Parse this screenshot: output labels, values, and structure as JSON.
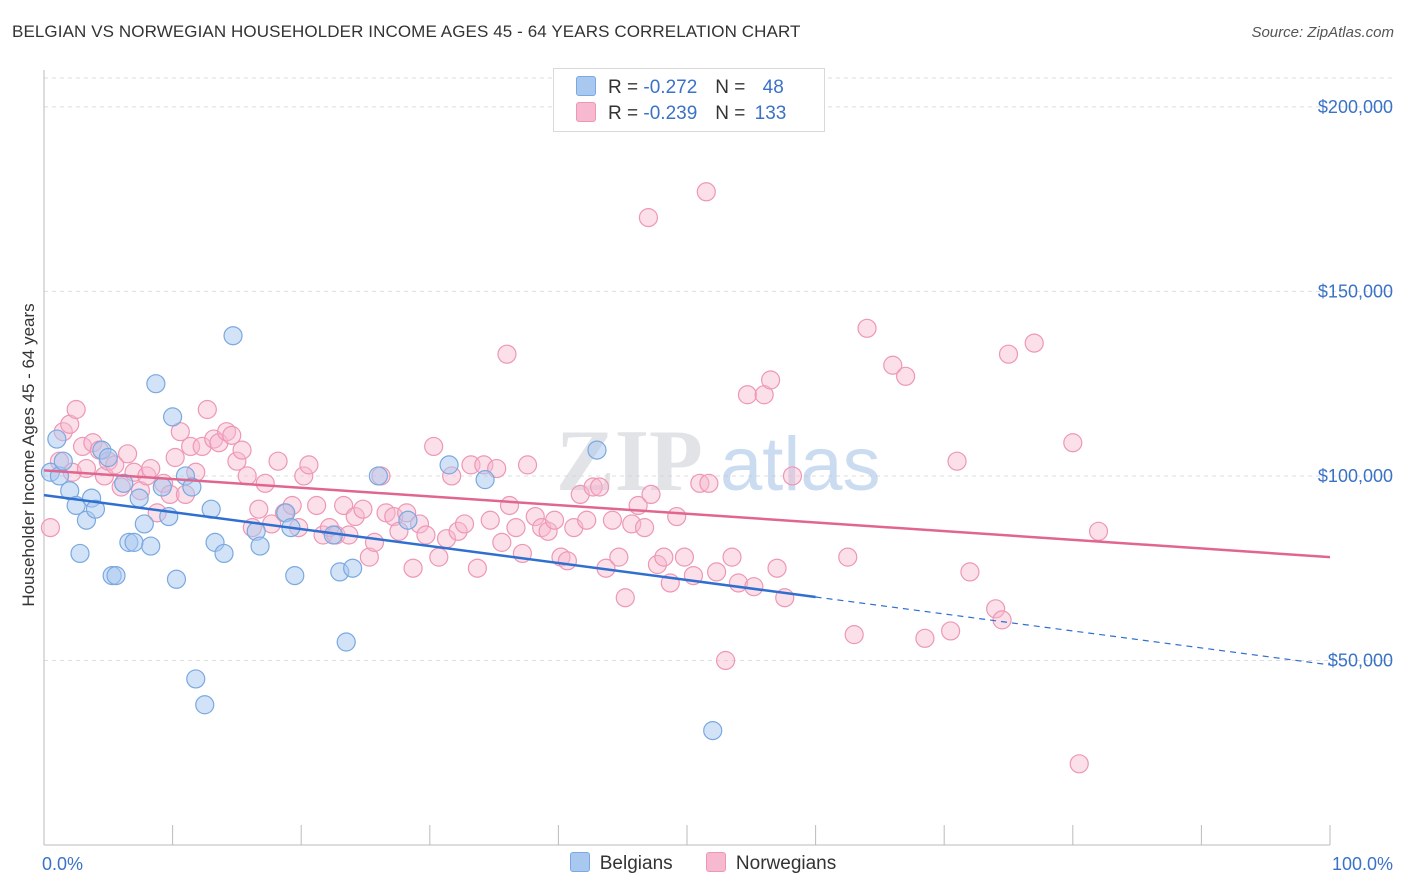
{
  "header": {
    "title": "BELGIAN VS NORWEGIAN HOUSEHOLDER INCOME AGES 45 - 64 YEARS CORRELATION CHART",
    "source": "Source: ZipAtlas.com"
  },
  "watermark": "ZIPatlas",
  "stats_legend": {
    "belgians": {
      "r_label": "R =",
      "r_value": "-0.272",
      "n_label": "N =",
      "n_value": "48"
    },
    "norwegians": {
      "r_label": "R =",
      "r_value": "-0.239",
      "n_label": "N =",
      "n_value": "133"
    }
  },
  "colors": {
    "belgians_fill": "#a8c8f0",
    "belgians_stroke": "#7aa8e0",
    "belgians_line": "#2f6fd0",
    "norwegians_fill": "#f7b9cf",
    "norwegians_stroke": "#ee97b5",
    "norwegians_line": "#e0668f",
    "tick_text": "#3a72c7",
    "grid": "#dddddd"
  },
  "chart_data": {
    "type": "scatter",
    "title": "BELGIAN VS NORWEGIAN HOUSEHOLDER INCOME AGES 45 - 64 YEARS CORRELATION CHART",
    "xlabel": "",
    "ylabel": "Householder Income Ages 45 - 64 years",
    "xlim": [
      0,
      100
    ],
    "ylim": [
      0,
      210000
    ],
    "x_tick_labels": [
      "0.0%",
      "100.0%"
    ],
    "y_ticks": [
      {
        "value": 50000,
        "label": "$50,000"
      },
      {
        "value": 100000,
        "label": "$100,000"
      },
      {
        "value": 150000,
        "label": "$150,000"
      },
      {
        "value": 200000,
        "label": "$200,000"
      }
    ],
    "legend": [
      "Belgians",
      "Norwegians"
    ],
    "series": [
      {
        "name": "Belgians",
        "trend": {
          "x_start": 0,
          "y_start": 94800,
          "x_end": 60,
          "y_end": 67200,
          "dashed_to_x": 100,
          "dashed_y_end": 48800
        },
        "points": [
          [
            0.5,
            101000
          ],
          [
            1.0,
            110000
          ],
          [
            1.2,
            100000
          ],
          [
            1.5,
            104000
          ],
          [
            2.0,
            96000
          ],
          [
            2.5,
            92000
          ],
          [
            2.8,
            79000
          ],
          [
            3.3,
            88000
          ],
          [
            3.7,
            94000
          ],
          [
            4.0,
            91000
          ],
          [
            4.5,
            107000
          ],
          [
            5.0,
            105000
          ],
          [
            5.3,
            73000
          ],
          [
            5.6,
            73000
          ],
          [
            6.2,
            98000
          ],
          [
            6.6,
            82000
          ],
          [
            7.0,
            82000
          ],
          [
            7.4,
            94000
          ],
          [
            7.8,
            87000
          ],
          [
            8.3,
            81000
          ],
          [
            8.7,
            125000
          ],
          [
            9.2,
            97000
          ],
          [
            9.7,
            89000
          ],
          [
            10.0,
            116000
          ],
          [
            10.3,
            72000
          ],
          [
            11.0,
            100000
          ],
          [
            11.5,
            97000
          ],
          [
            11.8,
            45000
          ],
          [
            12.5,
            38000
          ],
          [
            13.0,
            91000
          ],
          [
            13.3,
            82000
          ],
          [
            14.0,
            79000
          ],
          [
            14.7,
            138000
          ],
          [
            16.5,
            85000
          ],
          [
            16.8,
            81000
          ],
          [
            18.8,
            90000
          ],
          [
            19.2,
            86000
          ],
          [
            19.5,
            73000
          ],
          [
            22.5,
            84000
          ],
          [
            23.0,
            74000
          ],
          [
            23.5,
            55000
          ],
          [
            24.0,
            75000
          ],
          [
            26.0,
            100000
          ],
          [
            28.3,
            88000
          ],
          [
            31.5,
            103000
          ],
          [
            34.3,
            99000
          ],
          [
            43.0,
            107000
          ],
          [
            52.0,
            31000
          ]
        ]
      },
      {
        "name": "Norwegians",
        "trend": {
          "x_start": 0,
          "y_start": 101500,
          "x_end": 100,
          "y_end": 78000
        },
        "points": [
          [
            0.5,
            86000
          ],
          [
            1.2,
            104000
          ],
          [
            1.5,
            112000
          ],
          [
            2.0,
            114000
          ],
          [
            2.2,
            101000
          ],
          [
            2.5,
            118000
          ],
          [
            3.0,
            108000
          ],
          [
            3.3,
            102000
          ],
          [
            3.8,
            109000
          ],
          [
            4.3,
            107000
          ],
          [
            4.7,
            100000
          ],
          [
            5.0,
            104000
          ],
          [
            5.5,
            103000
          ],
          [
            6.0,
            97000
          ],
          [
            6.5,
            106000
          ],
          [
            7.0,
            101000
          ],
          [
            7.5,
            96000
          ],
          [
            8.0,
            100000
          ],
          [
            8.3,
            102000
          ],
          [
            8.8,
            90000
          ],
          [
            9.3,
            98000
          ],
          [
            9.8,
            95000
          ],
          [
            10.2,
            105000
          ],
          [
            10.6,
            112000
          ],
          [
            11.0,
            95000
          ],
          [
            11.4,
            108000
          ],
          [
            11.8,
            101000
          ],
          [
            12.3,
            108000
          ],
          [
            12.7,
            118000
          ],
          [
            13.2,
            110000
          ],
          [
            13.6,
            109000
          ],
          [
            14.2,
            112000
          ],
          [
            14.6,
            111000
          ],
          [
            15.0,
            104000
          ],
          [
            15.4,
            107000
          ],
          [
            15.8,
            100000
          ],
          [
            16.2,
            86000
          ],
          [
            16.7,
            91000
          ],
          [
            17.2,
            98000
          ],
          [
            17.7,
            87000
          ],
          [
            18.2,
            104000
          ],
          [
            18.7,
            90000
          ],
          [
            19.3,
            92000
          ],
          [
            19.8,
            86000
          ],
          [
            20.2,
            100000
          ],
          [
            20.6,
            103000
          ],
          [
            21.2,
            92000
          ],
          [
            21.7,
            84000
          ],
          [
            22.2,
            86000
          ],
          [
            22.7,
            84000
          ],
          [
            23.3,
            92000
          ],
          [
            23.7,
            84000
          ],
          [
            24.2,
            89000
          ],
          [
            24.8,
            91000
          ],
          [
            25.3,
            78000
          ],
          [
            25.7,
            82000
          ],
          [
            26.2,
            100000
          ],
          [
            26.6,
            90000
          ],
          [
            27.2,
            89000
          ],
          [
            27.6,
            85000
          ],
          [
            28.2,
            90000
          ],
          [
            28.7,
            75000
          ],
          [
            29.2,
            87000
          ],
          [
            29.7,
            84000
          ],
          [
            30.3,
            108000
          ],
          [
            30.7,
            78000
          ],
          [
            31.3,
            83000
          ],
          [
            31.7,
            100000
          ],
          [
            32.2,
            85000
          ],
          [
            32.7,
            87000
          ],
          [
            33.2,
            103000
          ],
          [
            33.7,
            75000
          ],
          [
            34.2,
            103000
          ],
          [
            34.7,
            88000
          ],
          [
            35.2,
            102000
          ],
          [
            35.6,
            82000
          ],
          [
            36.2,
            92000
          ],
          [
            36.7,
            86000
          ],
          [
            37.2,
            79000
          ],
          [
            37.6,
            103000
          ],
          [
            38.2,
            89000
          ],
          [
            38.7,
            86000
          ],
          [
            39.2,
            85000
          ],
          [
            39.7,
            88000
          ],
          [
            40.2,
            78000
          ],
          [
            40.7,
            77000
          ],
          [
            41.2,
            86000
          ],
          [
            41.7,
            95000
          ],
          [
            42.2,
            88000
          ],
          [
            42.7,
            97000
          ],
          [
            43.2,
            97000
          ],
          [
            43.7,
            75000
          ],
          [
            44.2,
            88000
          ],
          [
            44.7,
            78000
          ],
          [
            45.2,
            67000
          ],
          [
            45.7,
            87000
          ],
          [
            46.2,
            92000
          ],
          [
            46.7,
            86000
          ],
          [
            47.2,
            95000
          ],
          [
            47.7,
            76000
          ],
          [
            48.2,
            78000
          ],
          [
            48.7,
            71000
          ],
          [
            49.2,
            89000
          ],
          [
            49.8,
            78000
          ],
          [
            50.5,
            73000
          ],
          [
            51.0,
            98000
          ],
          [
            51.7,
            98000
          ],
          [
            52.3,
            74000
          ],
          [
            53.0,
            50000
          ],
          [
            53.5,
            78000
          ],
          [
            54.0,
            71000
          ],
          [
            54.7,
            122000
          ],
          [
            55.2,
            70000
          ],
          [
            56.0,
            122000
          ],
          [
            56.5,
            126000
          ],
          [
            57.0,
            75000
          ],
          [
            57.6,
            67000
          ],
          [
            58.2,
            100000
          ],
          [
            36.0,
            133000
          ],
          [
            47.0,
            170000
          ],
          [
            51.5,
            177000
          ],
          [
            62.5,
            78000
          ],
          [
            63.0,
            57000
          ],
          [
            64.0,
            140000
          ],
          [
            66.0,
            130000
          ],
          [
            67.0,
            127000
          ],
          [
            68.5,
            56000
          ],
          [
            70.5,
            58000
          ],
          [
            71.0,
            104000
          ],
          [
            72.0,
            74000
          ],
          [
            74.0,
            64000
          ],
          [
            74.5,
            61000
          ],
          [
            75.0,
            133000
          ],
          [
            77.0,
            136000
          ],
          [
            80.0,
            109000
          ],
          [
            82.0,
            85000
          ],
          [
            80.5,
            22000
          ]
        ]
      }
    ]
  },
  "bottom_legend": {
    "belgians_label": "Belgians",
    "norwegians_label": "Norwegians"
  }
}
